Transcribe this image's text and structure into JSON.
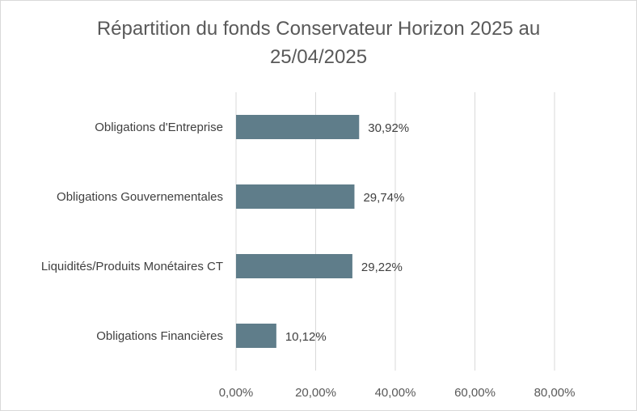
{
  "chart_data": {
    "type": "bar",
    "orientation": "horizontal",
    "title_line1": "Répartition du fonds Conservateur Horizon 2025 au",
    "title_line2": "25/04/2025",
    "categories": [
      "Obligations d'Entreprise",
      "Obligations Gouvernementales",
      "Liquidités/Produits Monétaires CT",
      "Obligations Financières"
    ],
    "values": [
      30.92,
      29.74,
      29.22,
      10.12
    ],
    "value_labels": [
      "30,92%",
      "29,74%",
      "29,22%",
      "10,12%"
    ],
    "xlim": [
      0,
      80
    ],
    "xticks": [
      0,
      20,
      40,
      60,
      80
    ],
    "xtick_labels": [
      "0,00%",
      "20,00%",
      "40,00%",
      "60,00%",
      "80,00%"
    ],
    "grid": true,
    "legend": "none",
    "bar_color": "#5f7d8a",
    "grid_color": "#d9d9d9"
  }
}
